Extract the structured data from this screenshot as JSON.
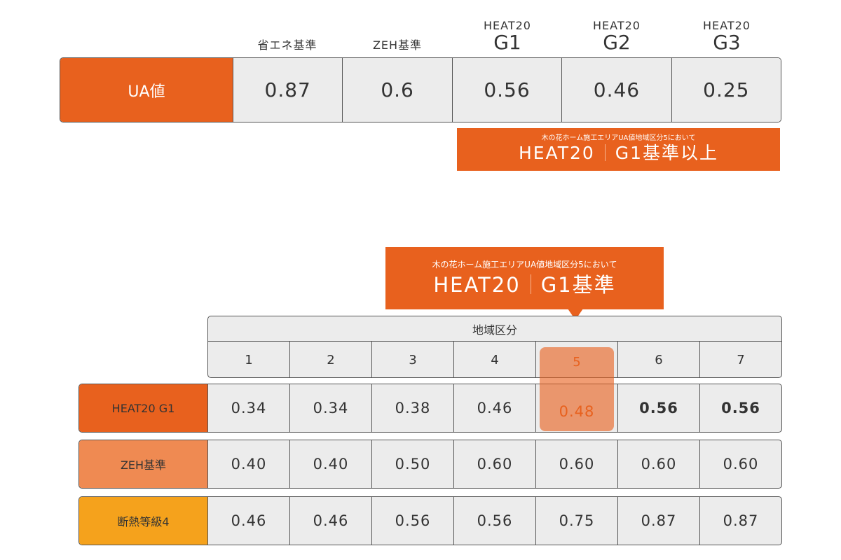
{
  "top_table": {
    "headers": [
      {
        "small": "",
        "big": "",
        "jp": "省エネ基準"
      },
      {
        "small": "",
        "big": "",
        "jp": "ZEH基準"
      },
      {
        "small": "HEAT20",
        "big": "G1",
        "jp": ""
      },
      {
        "small": "HEAT20",
        "big": "G2",
        "jp": ""
      },
      {
        "small": "HEAT20",
        "big": "G3",
        "jp": ""
      }
    ],
    "row_label": "UA値",
    "values": [
      "0.87",
      "0.6",
      "0.56",
      "0.46",
      "0.25"
    ]
  },
  "callout_top": {
    "small": "木の花ホーム施工エリアUA値地域区分5において",
    "big_left": "HEAT20",
    "big_right": "G1基準以上"
  },
  "callout_bottom": {
    "small": "木の花ホーム施工エリアUA値地域区分5において",
    "big_left": "HEAT20",
    "big_right": "G1基準"
  },
  "region_table": {
    "title": "地域区分",
    "regions": [
      "1",
      "2",
      "3",
      "4",
      "5",
      "6",
      "7"
    ],
    "highlight_region": "5",
    "rows": [
      {
        "label": "HEAT20 G1",
        "color": "#e8611e",
        "values": [
          "0.34",
          "0.34",
          "0.38",
          "0.46",
          "0.48",
          "0.56",
          "0.56"
        ]
      },
      {
        "label": "ZEH基準",
        "color": "#ef8a52",
        "values": [
          "0.40",
          "0.40",
          "0.50",
          "0.60",
          "0.60",
          "0.60",
          "0.60"
        ]
      },
      {
        "label": "断熱等級4",
        "color": "#f5a21c",
        "values": [
          "0.46",
          "0.46",
          "0.56",
          "0.56",
          "0.75",
          "0.87",
          "0.87"
        ]
      }
    ]
  },
  "colors": {
    "accent": "#e8611e",
    "cell_bg": "#ececec"
  }
}
